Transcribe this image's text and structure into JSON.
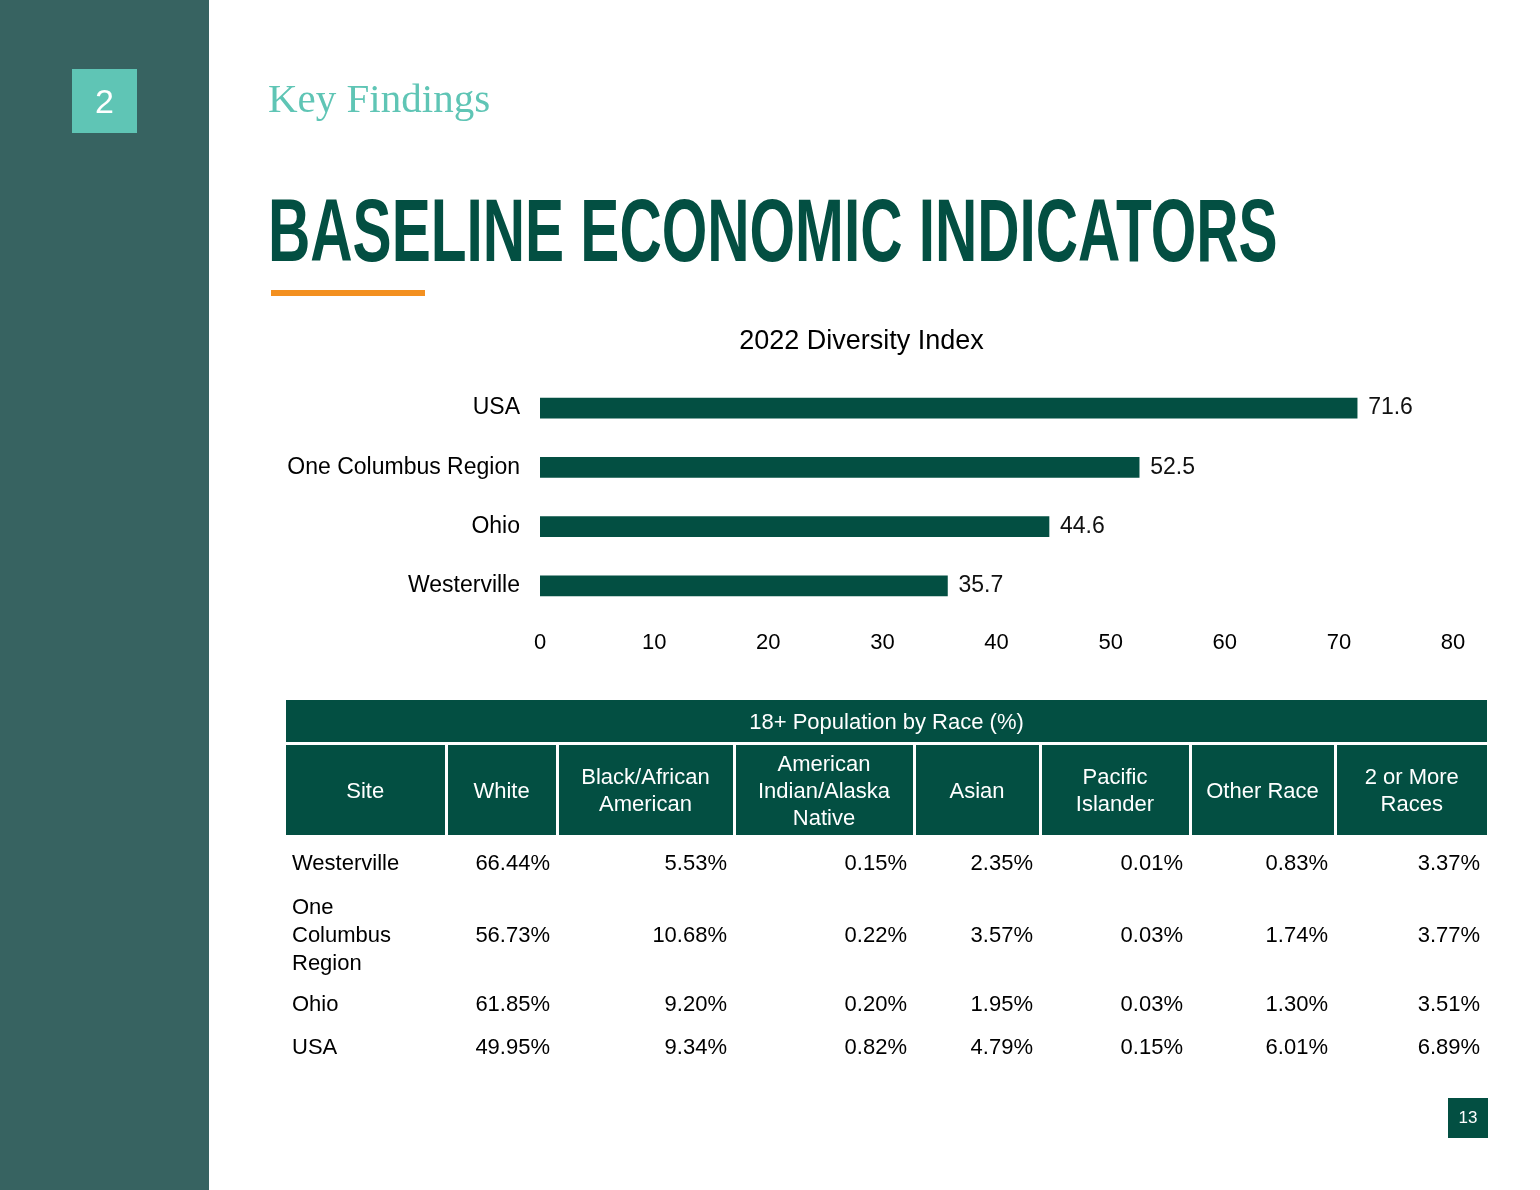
{
  "chart_data": [
    {
      "type": "other",
      "title": "BASELINE ECONOMIC INDICATORS",
      "subtitle": "Key Findings",
      "annotations": [
        "2",
        "13"
      ]
    },
    {
      "type": "bar",
      "orientation": "horizontal",
      "title": "2022 Diversity Index",
      "categories": [
        "USA",
        "One Columbus Region",
        "Ohio",
        "Westerville"
      ],
      "values": [
        71.6,
        52.5,
        44.6,
        35.7
      ],
      "color": "#034f42",
      "xlim": [
        0,
        80
      ],
      "xticks": [
        0,
        10,
        20,
        30,
        40,
        50,
        60,
        70,
        80
      ],
      "data_labels": true
    },
    {
      "type": "heatmap",
      "title": "18+ Population by Race (%)",
      "ylabel": "Site",
      "categories": [
        "White",
        "Black/African American",
        "American Indian/Alaska Native",
        "Asian",
        "Pacific Islander",
        "Other Race",
        "2 or More Races"
      ],
      "y_categories": [
        "Westerville",
        "One Columbus Region",
        "Ohio",
        "USA"
      ],
      "cells": [
        [
          66.44,
          5.53,
          0.15,
          2.35,
          0.01,
          0.83,
          3.37
        ],
        [
          56.73,
          10.68,
          0.22,
          3.57,
          0.03,
          1.74,
          3.77
        ],
        [
          61.85,
          9.2,
          0.2,
          1.95,
          0.03,
          1.3,
          3.51
        ],
        [
          49.95,
          9.34,
          0.82,
          4.79,
          0.15,
          6.01,
          6.89
        ]
      ],
      "cell_labels": [
        [
          "66.44%",
          "5.53%",
          "0.15%",
          "2.35%",
          "0.01%",
          "0.83%",
          "3.37%"
        ],
        [
          "56.73%",
          "10.68%",
          "0.22%",
          "3.57%",
          "0.03%",
          "1.74%",
          "3.77%"
        ],
        [
          "61.85%",
          "9.20%",
          "0.20%",
          "1.95%",
          "0.03%",
          "1.30%",
          "3.51%"
        ],
        [
          "49.95%",
          "9.34%",
          "0.82%",
          "4.79%",
          "0.15%",
          "6.01%",
          "6.89%"
        ]
      ]
    }
  ]
}
